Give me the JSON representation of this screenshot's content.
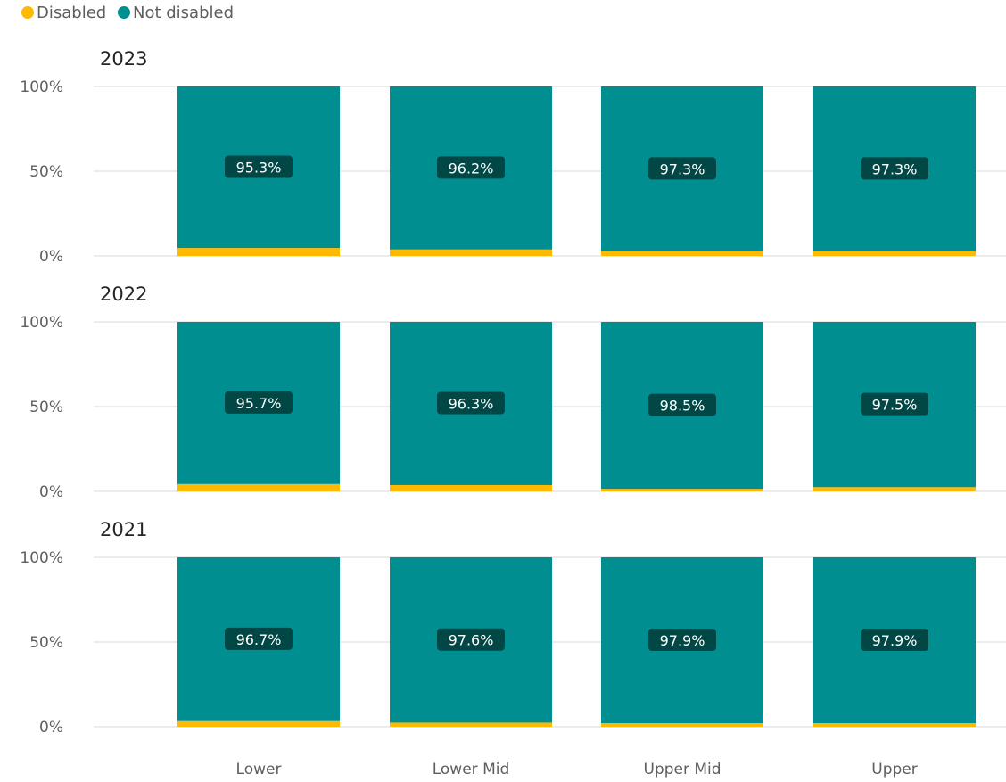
{
  "chart_data": [
    {
      "type": "bar",
      "stacked": "percent",
      "title": "2023",
      "categories": [
        "Lower",
        "Lower Mid",
        "Upper Mid",
        "Upper"
      ],
      "series": [
        {
          "name": "Disabled",
          "values": [
            4.7,
            3.8,
            2.7,
            2.7
          ]
        },
        {
          "name": "Not disabled",
          "values": [
            95.3,
            96.2,
            97.3,
            97.3
          ]
        }
      ],
      "data_labels": [
        "95.3%",
        "96.2%",
        "97.3%",
        "97.3%"
      ],
      "ylim": [
        0,
        100
      ],
      "yticks": [
        "0%",
        "50%",
        "100%"
      ]
    },
    {
      "type": "bar",
      "stacked": "percent",
      "title": "2022",
      "categories": [
        "Lower",
        "Lower Mid",
        "Upper Mid",
        "Upper"
      ],
      "series": [
        {
          "name": "Disabled",
          "values": [
            4.3,
            3.7,
            1.5,
            2.5
          ]
        },
        {
          "name": "Not disabled",
          "values": [
            95.7,
            96.3,
            98.5,
            97.5
          ]
        }
      ],
      "data_labels": [
        "95.7%",
        "96.3%",
        "98.5%",
        "97.5%"
      ],
      "ylim": [
        0,
        100
      ],
      "yticks": [
        "0%",
        "50%",
        "100%"
      ]
    },
    {
      "type": "bar",
      "stacked": "percent",
      "title": "2021",
      "categories": [
        "Lower",
        "Lower Mid",
        "Upper Mid",
        "Upper"
      ],
      "series": [
        {
          "name": "Disabled",
          "values": [
            3.3,
            2.4,
            2.1,
            2.1
          ]
        },
        {
          "name": "Not disabled",
          "values": [
            96.7,
            97.6,
            97.9,
            97.9
          ]
        }
      ],
      "data_labels": [
        "96.7%",
        "97.6%",
        "97.9%",
        "97.9%"
      ],
      "ylim": [
        0,
        100
      ],
      "yticks": [
        "0%",
        "50%",
        "100%"
      ]
    }
  ],
  "legend": {
    "position": "top-left",
    "items": [
      {
        "label": "Disabled",
        "color": "#FFB900"
      },
      {
        "label": "Not disabled",
        "color": "#008E91"
      }
    ]
  },
  "grid": true,
  "colors": {
    "disabled": "#FFB900",
    "not_disabled": "#008E91",
    "label_bg": "#004745",
    "grid": "#e6e6e6"
  }
}
